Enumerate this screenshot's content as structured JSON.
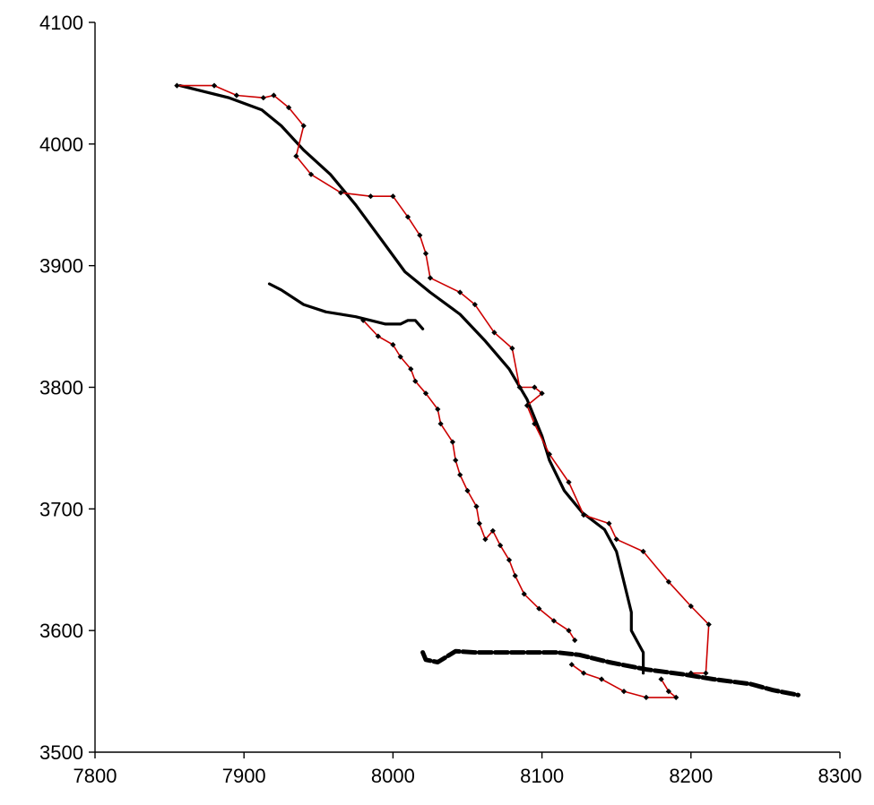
{
  "chart_data": {
    "type": "line",
    "title": "",
    "xlabel": "",
    "ylabel": "",
    "xlim": [
      7800,
      8300
    ],
    "ylim": [
      3500,
      4100
    ],
    "xticks": [
      7800,
      7900,
      8000,
      8100,
      8200,
      8300
    ],
    "yticks": [
      3500,
      3600,
      3700,
      3800,
      3900,
      4000,
      4100
    ],
    "grid": false,
    "legend": "none",
    "series": [
      {
        "color": "#000000",
        "width": 3.2,
        "markers": false,
        "points": [
          [
            7857,
            4048
          ],
          [
            7890,
            4038
          ],
          [
            7912,
            4028
          ],
          [
            7925,
            4015
          ],
          [
            7940,
            3995
          ],
          [
            7958,
            3975
          ],
          [
            7975,
            3950
          ],
          [
            7993,
            3920
          ],
          [
            8008,
            3895
          ],
          [
            8025,
            3878
          ],
          [
            8045,
            3860
          ],
          [
            8062,
            3838
          ],
          [
            8078,
            3815
          ],
          [
            8090,
            3790
          ],
          [
            8100,
            3760
          ],
          [
            8105,
            3740
          ],
          [
            8115,
            3715
          ],
          [
            8127,
            3697
          ],
          [
            8142,
            3683
          ],
          [
            8150,
            3665
          ],
          [
            8155,
            3640
          ],
          [
            8160,
            3615
          ],
          [
            8160,
            3600
          ],
          [
            8168,
            3582
          ],
          [
            8168,
            3565
          ]
        ]
      },
      {
        "color": "#000000",
        "width": 3.2,
        "markers": false,
        "points": [
          [
            7917,
            3885
          ],
          [
            7925,
            3880
          ],
          [
            7940,
            3868
          ],
          [
            7955,
            3862
          ],
          [
            7975,
            3858
          ],
          [
            7995,
            3852
          ],
          [
            8005,
            3852
          ],
          [
            8010,
            3855
          ],
          [
            8015,
            3855
          ],
          [
            8020,
            3848
          ]
        ]
      },
      {
        "color": "#000000",
        "width": 5,
        "markers": false,
        "dashed": true,
        "points": [
          [
            8020,
            3582
          ],
          [
            8022,
            3576
          ],
          [
            8030,
            3574
          ],
          [
            8042,
            3583
          ],
          [
            8055,
            3582
          ],
          [
            8070,
            3582
          ],
          [
            8090,
            3582
          ],
          [
            8110,
            3582
          ],
          [
            8125,
            3580
          ],
          [
            8145,
            3574
          ],
          [
            8170,
            3568
          ],
          [
            8195,
            3564
          ],
          [
            8215,
            3560
          ],
          [
            8240,
            3556
          ],
          [
            8255,
            3551
          ],
          [
            8272,
            3547
          ]
        ]
      },
      {
        "color": "#cc0000",
        "width": 1.6,
        "markers": true,
        "points": [
          [
            7855,
            4048
          ],
          [
            7880,
            4048
          ],
          [
            7895,
            4040
          ],
          [
            7913,
            4038
          ],
          [
            7920,
            4040
          ],
          [
            7930,
            4030
          ],
          [
            7940,
            4015
          ],
          [
            7935,
            3990
          ],
          [
            7945,
            3975
          ],
          [
            7965,
            3960
          ],
          [
            7985,
            3957
          ],
          [
            8000,
            3957
          ],
          [
            8010,
            3940
          ],
          [
            8018,
            3925
          ],
          [
            8022,
            3910
          ],
          [
            8025,
            3890
          ],
          [
            8045,
            3878
          ],
          [
            8055,
            3868
          ],
          [
            8068,
            3845
          ],
          [
            8080,
            3832
          ],
          [
            8085,
            3800
          ],
          [
            8095,
            3800
          ],
          [
            8100,
            3795
          ],
          [
            8090,
            3785
          ],
          [
            8095,
            3770
          ],
          [
            8105,
            3745
          ],
          [
            8118,
            3722
          ],
          [
            8128,
            3695
          ],
          [
            8145,
            3688
          ],
          [
            8150,
            3675
          ],
          [
            8168,
            3665
          ],
          [
            8185,
            3640
          ],
          [
            8200,
            3620
          ],
          [
            8212,
            3605
          ],
          [
            8210,
            3565
          ],
          [
            8200,
            3565
          ]
        ]
      },
      {
        "color": "#cc0000",
        "width": 1.6,
        "markers": true,
        "points": [
          [
            7980,
            3855
          ],
          [
            7990,
            3842
          ],
          [
            8000,
            3835
          ],
          [
            8005,
            3825
          ],
          [
            8012,
            3815
          ],
          [
            8015,
            3805
          ],
          [
            8022,
            3795
          ],
          [
            8030,
            3782
          ],
          [
            8032,
            3770
          ],
          [
            8040,
            3755
          ],
          [
            8042,
            3740
          ],
          [
            8045,
            3728
          ],
          [
            8050,
            3715
          ],
          [
            8056,
            3702
          ],
          [
            8058,
            3688
          ],
          [
            8062,
            3675
          ],
          [
            8067,
            3682
          ],
          [
            8072,
            3670
          ],
          [
            8078,
            3658
          ],
          [
            8082,
            3645
          ],
          [
            8088,
            3630
          ],
          [
            8098,
            3618
          ],
          [
            8108,
            3608
          ],
          [
            8118,
            3600
          ],
          [
            8122,
            3592
          ]
        ]
      },
      {
        "color": "#cc0000",
        "width": 1.6,
        "markers": true,
        "points": [
          [
            8120,
            3572
          ],
          [
            8128,
            3565
          ],
          [
            8140,
            3560
          ],
          [
            8155,
            3550
          ],
          [
            8170,
            3545
          ],
          [
            8190,
            3545
          ],
          [
            8185,
            3550
          ],
          [
            8180,
            3560
          ]
        ]
      }
    ]
  }
}
